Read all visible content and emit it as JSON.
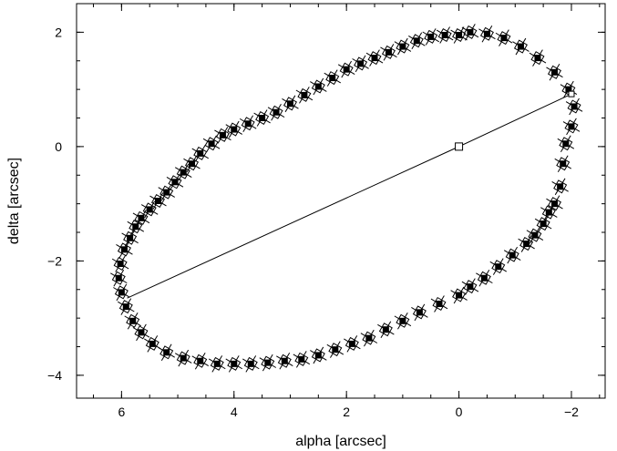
{
  "chart_data": {
    "type": "scatter",
    "title": "",
    "xlabel": "alpha [arcsec]",
    "ylabel": "delta [arcsec]",
    "xlim": [
      6.8,
      -2.6
    ],
    "ylim": [
      -4.4,
      2.5
    ],
    "x_axis_reversed": true,
    "x_ticks": [
      6,
      4,
      2,
      0,
      -2
    ],
    "x_tick_labels": [
      "6",
      "4",
      "2",
      "0",
      "−2"
    ],
    "y_ticks": [
      2,
      0,
      -2,
      -4
    ],
    "y_tick_labels": [
      "2",
      "0",
      "−2",
      "−4"
    ],
    "grid": false,
    "legend": "none",
    "marker": "square with error bars",
    "series": [
      {
        "x": [
          0.0,
          -0.2,
          -0.5,
          -0.8,
          -1.1,
          -1.4,
          -1.7,
          -1.95,
          -2.05,
          -2.0,
          -1.9,
          -1.85,
          -1.8,
          -1.7,
          -1.6,
          -1.5,
          -1.35,
          -1.2,
          -0.95,
          -0.7,
          -0.45,
          -0.2,
          0.0,
          0.35,
          0.7,
          1.0,
          1.3,
          1.6,
          1.9,
          2.2,
          2.5,
          2.8,
          3.1,
          3.4,
          3.7,
          4.0,
          4.3,
          4.6,
          4.9,
          5.2,
          5.45,
          5.65,
          5.8,
          5.92,
          6.0,
          6.05,
          6.02,
          5.95,
          5.85,
          5.75,
          5.65,
          5.5,
          5.35,
          5.2,
          5.05,
          4.9,
          4.75,
          4.6,
          4.4,
          4.2,
          4.0,
          3.75,
          3.5,
          3.25,
          3.0,
          2.75,
          2.5,
          2.25,
          2.0,
          1.75,
          1.5,
          1.25,
          1.0,
          0.75,
          0.5,
          0.25
        ],
        "y": [
          1.95,
          2.0,
          1.97,
          1.9,
          1.75,
          1.55,
          1.3,
          1.0,
          0.7,
          0.35,
          0.05,
          -0.3,
          -0.7,
          -1.0,
          -1.15,
          -1.35,
          -1.55,
          -1.7,
          -1.9,
          -2.1,
          -2.3,
          -2.45,
          -2.6,
          -2.75,
          -2.9,
          -3.05,
          -3.2,
          -3.35,
          -3.45,
          -3.55,
          -3.65,
          -3.72,
          -3.75,
          -3.78,
          -3.8,
          -3.8,
          -3.8,
          -3.75,
          -3.7,
          -3.6,
          -3.45,
          -3.25,
          -3.05,
          -2.8,
          -2.55,
          -2.3,
          -2.05,
          -1.8,
          -1.6,
          -1.4,
          -1.25,
          -1.1,
          -0.95,
          -0.8,
          -0.62,
          -0.45,
          -0.3,
          -0.12,
          0.05,
          0.2,
          0.3,
          0.4,
          0.5,
          0.6,
          0.75,
          0.9,
          1.05,
          1.2,
          1.35,
          1.45,
          1.55,
          1.65,
          1.75,
          1.85,
          1.92,
          1.95
        ]
      }
    ],
    "line": {
      "x": [
        5.9,
        0.0,
        -2.0
      ],
      "y": [
        -2.65,
        0.0,
        0.92
      ]
    },
    "center_marker": {
      "x": 0.0,
      "y": 0.0
    }
  }
}
